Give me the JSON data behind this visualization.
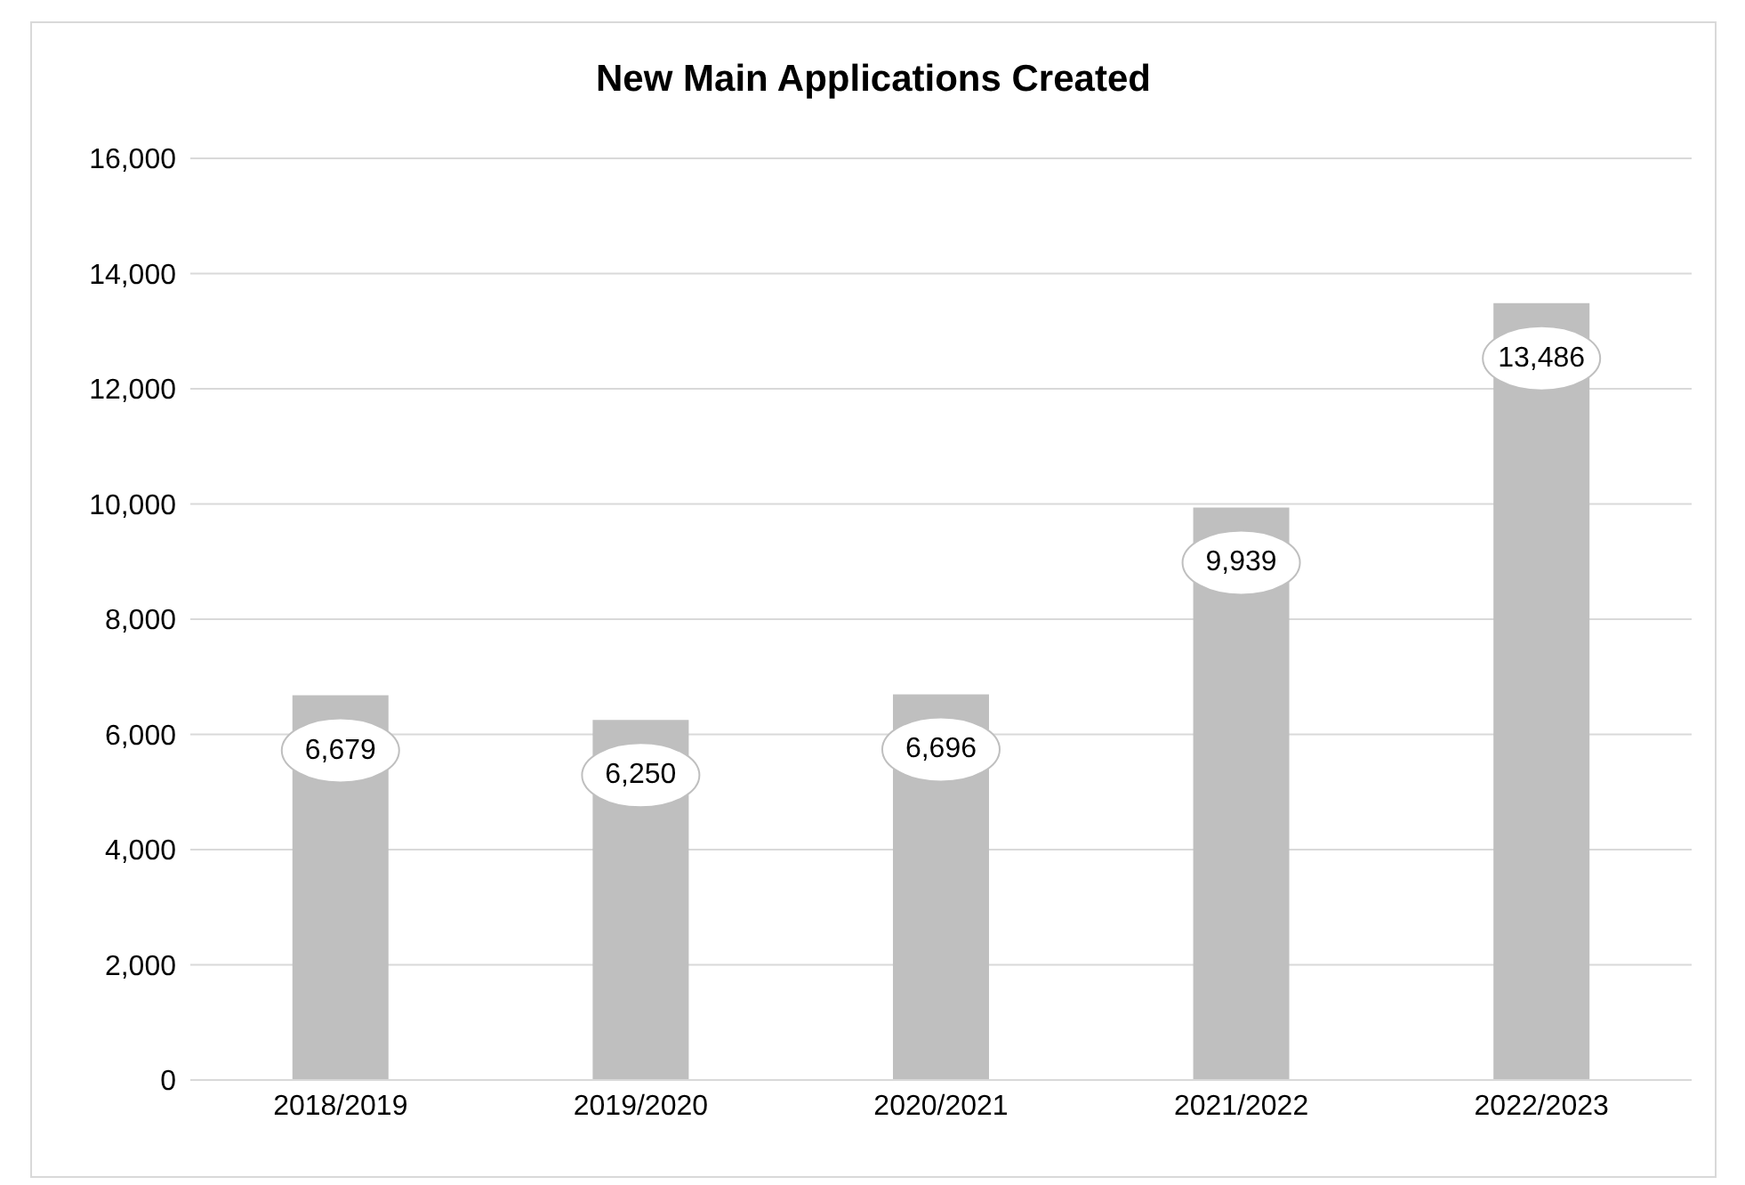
{
  "chart_data": {
    "type": "bar",
    "title": "New Main Applications Created",
    "categories": [
      "2018/2019",
      "2019/2020",
      "2020/2021",
      "2021/2022",
      "2022/2023"
    ],
    "values": [
      6679,
      6250,
      6696,
      9939,
      13486
    ],
    "color": "#bfbfbf",
    "ylim": [
      0,
      16000
    ],
    "yticks": [
      {
        "value": 0,
        "label": "0"
      },
      {
        "value": 2000,
        "label": "2,000"
      },
      {
        "value": 4000,
        "label": "4,000"
      },
      {
        "value": 6000,
        "label": "6,000"
      },
      {
        "value": 8000,
        "label": "8,000"
      },
      {
        "value": 10000,
        "label": "10,000"
      },
      {
        "value": 12000,
        "label": "12,000"
      },
      {
        "value": 14000,
        "label": "14,000"
      },
      {
        "value": 16000,
        "label": "16,000"
      }
    ],
    "grid": "y",
    "value_labels": [
      "6,679",
      "6,250",
      "6,696",
      "9,939",
      "13,486"
    ]
  }
}
